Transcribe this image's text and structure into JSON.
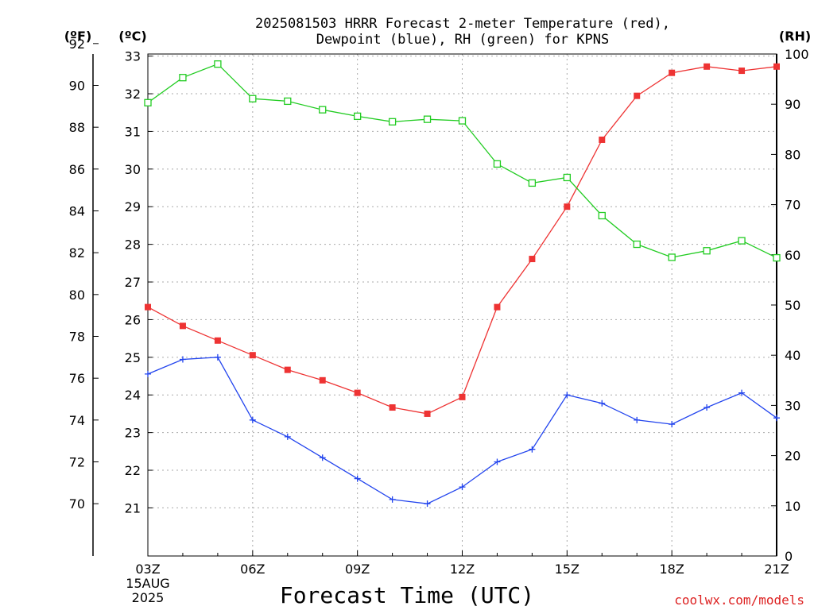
{
  "title_line1": "2025081503 HRRR Forecast 2-meter Temperature (red),",
  "title_line2": "Dewpoint (blue), RH (green) for KPNS",
  "unit_f": "(ºF)",
  "unit_c": "(ºC)",
  "unit_rh": "(RH)",
  "xlabel": "Forecast Time (UTC)",
  "credit": "coolwx.com/models",
  "date_line1": "15AUG",
  "date_line2": "2025",
  "colors": {
    "temperature": "#ee3333",
    "dewpoint": "#2244ee",
    "rh": "#22cc22"
  },
  "chart_data": {
    "type": "line",
    "x": [
      "03Z",
      "04Z",
      "05Z",
      "06Z",
      "07Z",
      "08Z",
      "09Z",
      "10Z",
      "11Z",
      "12Z",
      "13Z",
      "14Z",
      "15Z",
      "16Z",
      "17Z",
      "18Z",
      "19Z",
      "20Z",
      "21Z"
    ],
    "xticks": [
      "03Z",
      "06Z",
      "09Z",
      "12Z",
      "15Z",
      "18Z",
      "21Z"
    ],
    "series": [
      {
        "name": "Temperature",
        "axis": "F",
        "marker": "filled-square",
        "values": [
          79.4,
          78.5,
          77.8,
          77.1,
          76.4,
          75.9,
          75.3,
          74.6,
          74.3,
          75.1,
          79.4,
          81.7,
          84.2,
          87.4,
          89.5,
          90.6,
          90.9,
          90.7,
          90.9
        ]
      },
      {
        "name": "Dewpoint",
        "axis": "F",
        "marker": "plus",
        "values": [
          76.2,
          76.9,
          77.0,
          74.0,
          73.2,
          72.2,
          71.2,
          70.2,
          70.0,
          70.8,
          72.0,
          72.6,
          75.2,
          74.8,
          74.0,
          73.8,
          74.6,
          75.3,
          74.1
        ]
      },
      {
        "name": "RH",
        "axis": "RH",
        "marker": "open-square",
        "values": [
          90.3,
          95.3,
          98.0,
          91.1,
          90.6,
          88.9,
          87.6,
          86.5,
          87.0,
          86.7,
          78.1,
          74.3,
          75.4,
          67.8,
          62.1,
          59.5,
          60.8,
          62.8,
          59.4
        ]
      }
    ],
    "axes": {
      "left_f": {
        "ticks": [
          70,
          72,
          74,
          76,
          78,
          80,
          82,
          84,
          86,
          88,
          90,
          92
        ],
        "range": [
          67.5,
          91.5
        ]
      },
      "left_c": {
        "ticks": [
          21,
          22,
          23,
          24,
          25,
          26,
          27,
          28,
          29,
          30,
          31,
          32,
          33
        ]
      },
      "right_rh": {
        "ticks": [
          0,
          10,
          20,
          30,
          40,
          50,
          60,
          70,
          80,
          90,
          100
        ],
        "range": [
          0,
          100
        ]
      }
    },
    "grid": true
  }
}
